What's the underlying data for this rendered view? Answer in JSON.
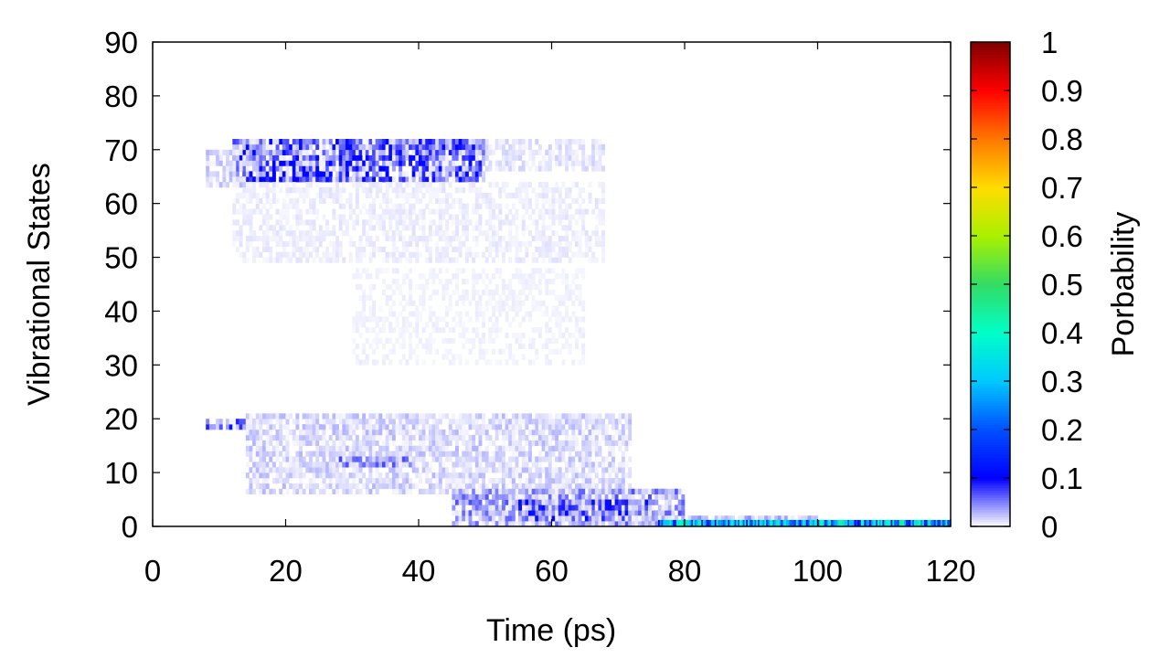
{
  "chart_data": {
    "type": "heatmap",
    "xlabel": "Time (ps)",
    "ylabel": "Vibrational States",
    "colorbar_label": "Porbability",
    "xlim": [
      0,
      120
    ],
    "ylim": [
      0,
      90
    ],
    "zlim": [
      0,
      1
    ],
    "x_ticks": [
      "0",
      "20",
      "40",
      "60",
      "80",
      "100",
      "120"
    ],
    "y_ticks": [
      "0",
      "10",
      "20",
      "30",
      "40",
      "50",
      "60",
      "70",
      "80",
      "90"
    ],
    "colorbar_ticks": [
      "0",
      "0.1",
      "0.2",
      "0.3",
      "0.4",
      "0.5",
      "0.6",
      "0.7",
      "0.8",
      "0.9",
      "1"
    ],
    "colormap": [
      {
        "v": 0.0,
        "color": "#ffffff"
      },
      {
        "v": 0.1,
        "color": "#0000ff"
      },
      {
        "v": 0.2,
        "color": "#0050ff"
      },
      {
        "v": 0.3,
        "color": "#00c8ff"
      },
      {
        "v": 0.4,
        "color": "#00ffc8"
      },
      {
        "v": 0.5,
        "color": "#32dc64"
      },
      {
        "v": 0.6,
        "color": "#aaf000"
      },
      {
        "v": 0.7,
        "color": "#ffdc00"
      },
      {
        "v": 0.8,
        "color": "#ff7800"
      },
      {
        "v": 0.9,
        "color": "#ff0000"
      },
      {
        "v": 1.0,
        "color": "#800000"
      }
    ],
    "regions": [
      {
        "x": [
          12,
          50
        ],
        "y": [
          64,
          72
        ],
        "peak": 0.12
      },
      {
        "x": [
          8,
          14
        ],
        "y": [
          63,
          70
        ],
        "peak": 0.03
      },
      {
        "x": [
          50,
          68
        ],
        "y": [
          66,
          72
        ],
        "peak": 0.02
      },
      {
        "x": [
          12,
          68
        ],
        "y": [
          49,
          64
        ],
        "peak": 0.012
      },
      {
        "x": [
          30,
          65
        ],
        "y": [
          30,
          48
        ],
        "peak": 0.008
      },
      {
        "x": [
          8,
          16
        ],
        "y": [
          18,
          20
        ],
        "peak": 0.15
      },
      {
        "x": [
          14,
          72
        ],
        "y": [
          6,
          21
        ],
        "peak": 0.03
      },
      {
        "x": [
          28,
          40
        ],
        "y": [
          11,
          13
        ],
        "peak": 0.08
      },
      {
        "x": [
          45,
          80
        ],
        "y": [
          0,
          7
        ],
        "peak": 0.07
      },
      {
        "x": [
          55,
          75
        ],
        "y": [
          1,
          5
        ],
        "peak": 0.12
      },
      {
        "x": [
          70,
          100
        ],
        "y": [
          0,
          2
        ],
        "peak": 0.05
      }
    ],
    "ground_state_band": {
      "x": [
        76,
        120
      ],
      "y": [
        0,
        1.2
      ],
      "range": [
        0.1,
        0.45
      ]
    }
  }
}
